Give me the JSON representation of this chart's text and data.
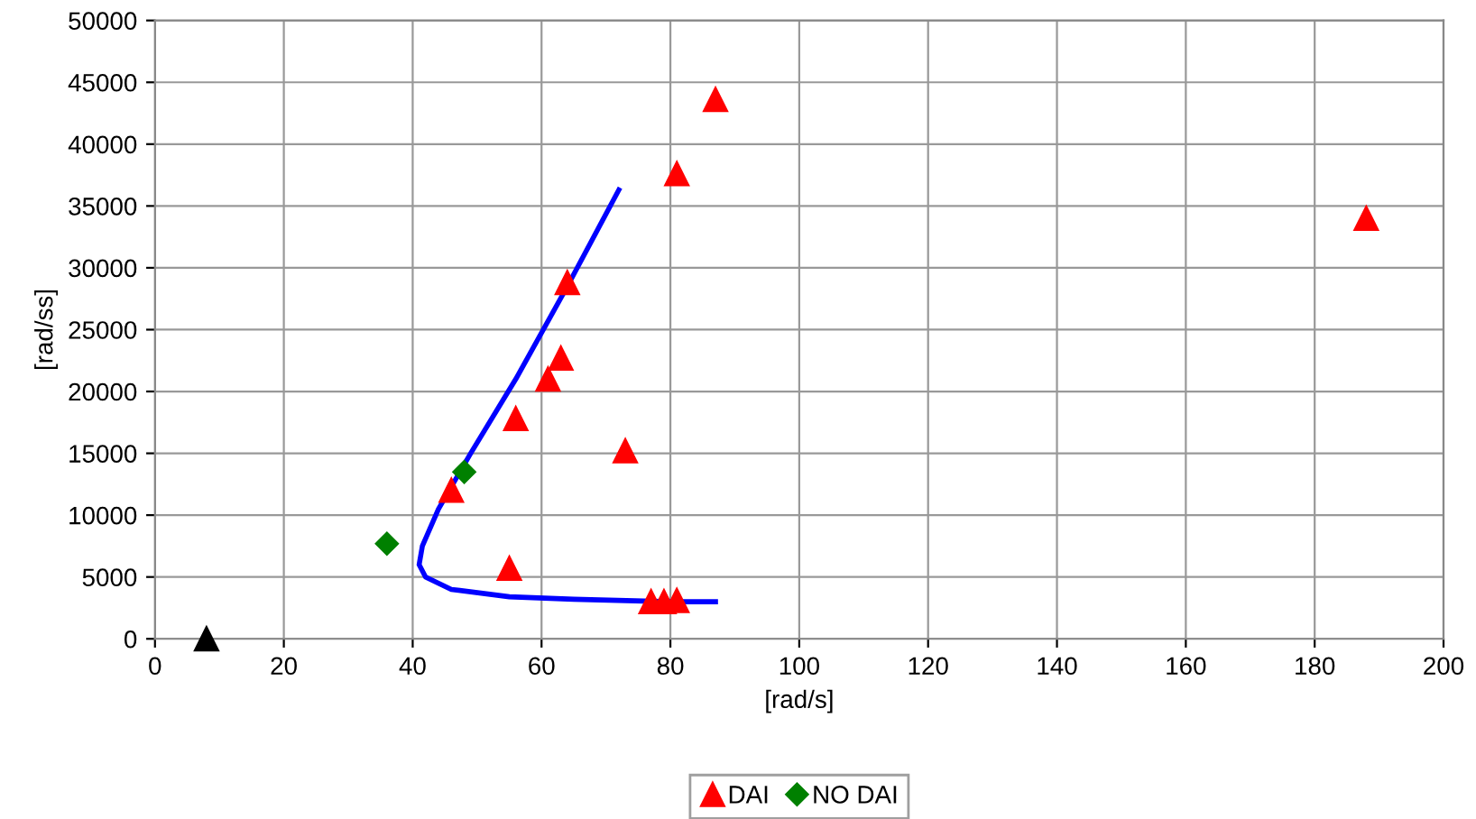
{
  "chart_data": {
    "type": "scatter",
    "xlabel": "[rad/s]",
    "ylabel": "[rad/ss]",
    "xlim": [
      0,
      200
    ],
    "ylim": [
      0,
      50000
    ],
    "xticks": [
      0,
      20,
      40,
      60,
      80,
      100,
      120,
      140,
      160,
      180,
      200
    ],
    "yticks": [
      0,
      5000,
      10000,
      15000,
      20000,
      25000,
      30000,
      35000,
      40000,
      45000,
      50000
    ],
    "grid": true,
    "legend": "bottom",
    "series": [
      {
        "name": "DAI",
        "color": "#ff0000",
        "marker": "triangle",
        "x": [
          87,
          81,
          64,
          63,
          61,
          56,
          73,
          46,
          55,
          77,
          79,
          81,
          188
        ],
        "values": [
          43600,
          37600,
          28800,
          22700,
          21000,
          17800,
          15200,
          12000,
          5700,
          3000,
          3000,
          3100,
          34000
        ]
      },
      {
        "name": "NO DAI",
        "color": "#008000",
        "marker": "diamond",
        "x": [
          36,
          48
        ],
        "values": [
          7700,
          13500
        ]
      },
      {
        "color": "#000000",
        "marker": "triangle",
        "x": [
          8
        ],
        "values": [
          0
        ]
      },
      {
        "type": "line",
        "color": "#0000ff",
        "marker": "none",
        "x": [
          72,
          64,
          56,
          49,
          44,
          41.5,
          41,
          42,
          46,
          55,
          65,
          80,
          87
        ],
        "values": [
          36300,
          28500,
          21000,
          15000,
          10500,
          7500,
          6000,
          5000,
          4000,
          3400,
          3200,
          3000,
          3000
        ]
      }
    ]
  }
}
